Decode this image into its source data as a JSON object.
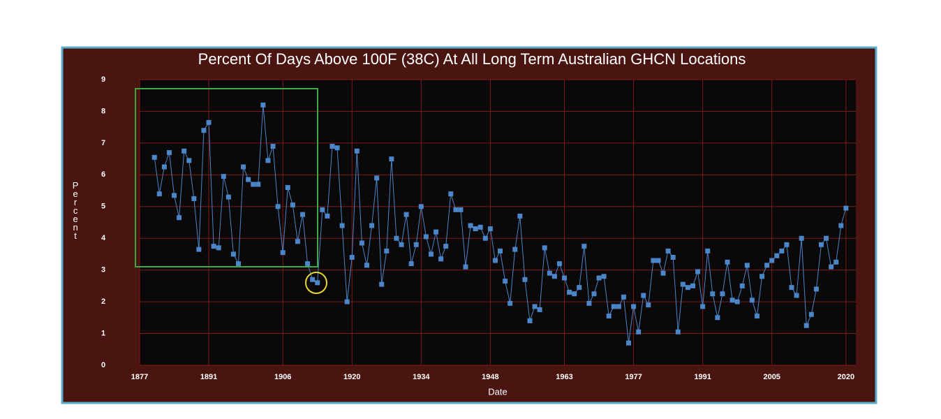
{
  "chart_data": {
    "type": "line",
    "title": "Percent Of Days Above 100F (38C) At All Long Term Australian GHCN Locations",
    "x_label": "Date",
    "y_label": "Percent",
    "x": [
      1880,
      1881,
      1882,
      1883,
      1884,
      1885,
      1886,
      1887,
      1888,
      1889,
      1890,
      1891,
      1892,
      1893,
      1894,
      1895,
      1896,
      1897,
      1898,
      1899,
      1900,
      1901,
      1902,
      1903,
      1904,
      1905,
      1906,
      1907,
      1908,
      1909,
      1910,
      1911,
      1912,
      1913,
      1914,
      1915,
      1916,
      1917,
      1918,
      1919,
      1920,
      1921,
      1922,
      1923,
      1924,
      1925,
      1926,
      1927,
      1928,
      1929,
      1930,
      1931,
      1932,
      1933,
      1934,
      1935,
      1936,
      1937,
      1938,
      1939,
      1940,
      1941,
      1942,
      1943,
      1944,
      1945,
      1946,
      1947,
      1948,
      1949,
      1950,
      1951,
      1952,
      1953,
      1954,
      1955,
      1956,
      1957,
      1958,
      1959,
      1960,
      1961,
      1962,
      1963,
      1964,
      1965,
      1966,
      1967,
      1968,
      1969,
      1970,
      1971,
      1972,
      1973,
      1974,
      1975,
      1976,
      1977,
      1978,
      1979,
      1980,
      1981,
      1982,
      1983,
      1984,
      1985,
      1986,
      1987,
      1988,
      1989,
      1990,
      1991,
      1992,
      1993,
      1994,
      1995,
      1996,
      1997,
      1998,
      1999,
      2000,
      2001,
      2002,
      2003,
      2004,
      2005,
      2006,
      2007,
      2008,
      2009,
      2010,
      2011,
      2012,
      2013,
      2014,
      2015,
      2016,
      2017,
      2018,
      2019,
      2020
    ],
    "series": [
      {
        "name": "Percent",
        "color": "#4a86c8",
        "values": [
          6.55,
          5.4,
          6.25,
          6.7,
          5.35,
          4.65,
          6.75,
          6.45,
          5.25,
          3.65,
          7.4,
          7.65,
          3.75,
          3.7,
          5.95,
          5.3,
          3.5,
          3.2,
          6.25,
          5.85,
          5.7,
          5.7,
          8.2,
          6.45,
          6.9,
          5.0,
          3.55,
          5.6,
          5.05,
          3.9,
          4.75,
          3.2,
          2.7,
          2.6,
          4.9,
          4.7,
          6.9,
          6.85,
          4.4,
          2.0,
          3.4,
          6.75,
          3.85,
          3.15,
          4.4,
          5.9,
          2.55,
          3.6,
          6.5,
          4.0,
          3.8,
          4.75,
          3.2,
          3.8,
          5.0,
          4.05,
          3.5,
          4.2,
          3.35,
          3.75,
          5.4,
          4.9,
          4.9,
          3.1,
          4.4,
          4.3,
          4.35,
          4.0,
          4.3,
          3.3,
          3.6,
          2.65,
          1.95,
          3.65,
          4.7,
          2.7,
          1.4,
          1.85,
          1.75,
          3.7,
          2.9,
          2.8,
          3.2,
          2.75,
          2.3,
          2.25,
          2.45,
          3.75,
          1.95,
          2.25,
          2.75,
          2.8,
          1.55,
          1.85,
          1.85,
          2.15,
          0.7,
          1.85,
          1.05,
          2.2,
          1.9,
          3.3,
          3.3,
          2.9,
          3.6,
          3.4,
          1.05,
          2.55,
          2.45,
          2.5,
          2.95,
          1.85,
          3.6,
          2.25,
          1.5,
          2.25,
          3.25,
          2.05,
          2.0,
          2.5,
          3.15,
          2.05,
          1.55,
          2.8,
          3.15,
          3.3,
          3.45,
          3.6,
          3.8,
          2.45,
          2.2,
          4.0,
          1.25,
          1.6,
          2.4,
          3.8,
          4.0,
          3.1,
          3.25,
          4.4,
          4.95
        ]
      }
    ],
    "xlim": [
      1877,
      2022
    ],
    "xticks": [
      1877,
      1891,
      1906,
      1920,
      1934,
      1948,
      1963,
      1977,
      1991,
      2005,
      2020
    ],
    "ylim": [
      0,
      9
    ],
    "yticks": [
      0,
      1,
      2,
      3,
      4,
      5,
      6,
      7,
      8,
      9
    ],
    "grid": true
  }
}
